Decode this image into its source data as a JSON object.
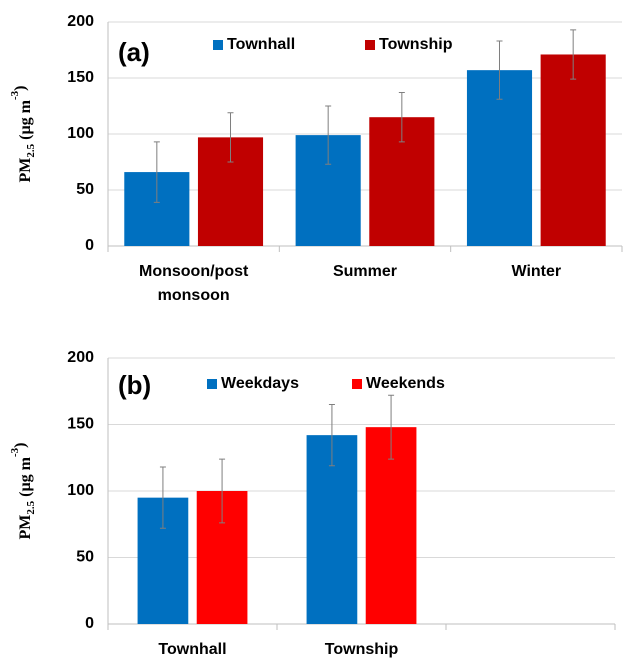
{
  "chart_data": [
    {
      "type": "bar",
      "panel_label": "(a)",
      "ylabel": [
        "PM",
        "2.5",
        " (µg m",
        "-3",
        ")"
      ],
      "categories": [
        "Monsoon/post monsoon",
        "Summer",
        "Winter"
      ],
      "series": [
        {
          "name": "Townhall",
          "color": "#0070c0",
          "values": [
            66,
            99,
            157
          ],
          "errors": [
            27,
            26,
            26
          ]
        },
        {
          "name": "Township",
          "color": "#c00000",
          "values": [
            97,
            115,
            171
          ],
          "errors": [
            22,
            22,
            22
          ]
        }
      ],
      "ylim": [
        0,
        200
      ],
      "yticks": [
        0,
        50,
        100,
        150,
        200
      ],
      "grid": true
    },
    {
      "type": "bar",
      "panel_label": "(b)",
      "ylabel": [
        "PM",
        "2.5",
        " (µg m",
        "-3",
        ")"
      ],
      "categories": [
        "Townhall",
        "Township",
        null
      ],
      "series": [
        {
          "name": "Weekdays",
          "color": "#0070c0",
          "values": [
            95,
            142,
            null
          ],
          "errors": [
            23,
            23,
            null
          ]
        },
        {
          "name": "Weekends",
          "color": "#ff0000",
          "values": [
            100,
            148,
            null
          ],
          "errors": [
            24,
            24,
            null
          ]
        }
      ],
      "ylim": [
        0,
        200
      ],
      "yticks": [
        0,
        50,
        100,
        150,
        200
      ],
      "grid": true
    }
  ]
}
